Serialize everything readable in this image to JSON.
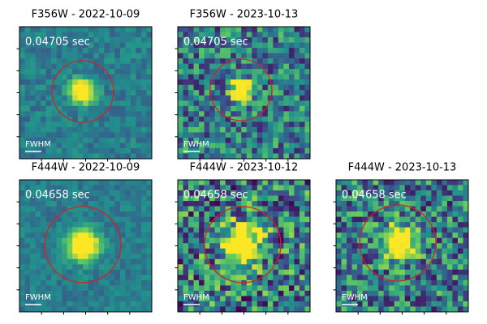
{
  "panels": [
    {
      "title": "F356W - 2022-10-09",
      "exposure": "0.04705 sec",
      "scale_label": "FWHM"
    },
    {
      "title": "F356W - 2023-10-13",
      "exposure": "0.04705 sec",
      "scale_label": "FWHM"
    },
    {
      "title": "F444W - 2022-10-09",
      "exposure": "0.04658 sec",
      "scale_label": "FWHM"
    },
    {
      "title": "F444W - 2023-10-12",
      "exposure": "0.04658 sec",
      "scale_label": "FWHM"
    },
    {
      "title": "F444W - 2023-10-13",
      "exposure": "0.04658 sec",
      "scale_label": "FWHM"
    }
  ]
}
